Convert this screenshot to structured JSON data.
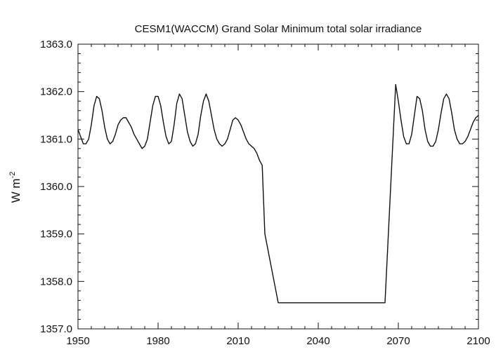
{
  "chart_data": {
    "type": "line",
    "title": "CESM1(WACCM) Grand Solar Minimum total solar irradiance",
    "xlabel": "",
    "ylabel": "W m",
    "ylabel_superscript": "-2",
    "xlim": [
      1950,
      2100
    ],
    "ylim": [
      1357.0,
      1363.0
    ],
    "x_ticks": [
      1950,
      1980,
      2010,
      2040,
      2070,
      2100
    ],
    "x_tick_labels": [
      "1950",
      "1980",
      "2010",
      "2040",
      "2070",
      "2100"
    ],
    "y_ticks": [
      1357.0,
      1358.0,
      1359.0,
      1360.0,
      1361.0,
      1362.0,
      1363.0
    ],
    "y_tick_labels": [
      "1357.0",
      "1358.0",
      "1359.0",
      "1360.0",
      "1361.0",
      "1362.0",
      "1363.0"
    ],
    "grid": false,
    "line_color": "#111111",
    "series": [
      {
        "x": [
          1950,
          1951,
          1952,
          1953,
          1954,
          1955,
          1956,
          1957,
          1958,
          1959,
          1960,
          1961,
          1962,
          1963,
          1964,
          1965,
          1966,
          1967,
          1968,
          1969,
          1970,
          1971,
          1972,
          1973,
          1974,
          1975,
          1976,
          1977,
          1978,
          1979,
          1980,
          1981,
          1982,
          1983,
          1984,
          1985,
          1986,
          1987,
          1988,
          1989,
          1990,
          1991,
          1992,
          1993,
          1994,
          1995,
          1996,
          1997,
          1998,
          1999,
          2000,
          2001,
          2002,
          2003,
          2004,
          2005,
          2006,
          2007,
          2008,
          2009,
          2010,
          2011,
          2012,
          2013,
          2014,
          2015,
          2016,
          2017,
          2018,
          2019,
          2020,
          2025,
          2065,
          2069,
          2070,
          2071,
          2072,
          2073,
          2074,
          2075,
          2076,
          2077,
          2078,
          2079,
          2080,
          2081,
          2082,
          2083,
          2084,
          2085,
          2086,
          2087,
          2088,
          2089,
          2090,
          2091,
          2092,
          2093,
          2094,
          2095,
          2096,
          2097,
          2098,
          2099,
          2100
        ],
        "y": [
          1361.2,
          1361.05,
          1360.9,
          1360.9,
          1361.0,
          1361.3,
          1361.7,
          1361.9,
          1361.85,
          1361.6,
          1361.25,
          1361.0,
          1360.9,
          1360.95,
          1361.1,
          1361.3,
          1361.4,
          1361.45,
          1361.45,
          1361.35,
          1361.25,
          1361.1,
          1361.0,
          1360.9,
          1360.8,
          1360.85,
          1361.0,
          1361.35,
          1361.7,
          1361.9,
          1361.9,
          1361.7,
          1361.35,
          1361.05,
          1360.9,
          1360.95,
          1361.3,
          1361.75,
          1361.95,
          1361.85,
          1361.5,
          1361.15,
          1360.95,
          1360.85,
          1360.9,
          1361.1,
          1361.5,
          1361.8,
          1361.95,
          1361.8,
          1361.5,
          1361.2,
          1361.0,
          1360.9,
          1360.85,
          1360.9,
          1361.0,
          1361.2,
          1361.4,
          1361.45,
          1361.4,
          1361.3,
          1361.15,
          1361.0,
          1360.9,
          1360.85,
          1360.8,
          1360.7,
          1360.55,
          1360.45,
          1359.0,
          1357.55,
          1357.55,
          1362.15,
          1361.8,
          1361.4,
          1361.05,
          1360.9,
          1360.9,
          1361.1,
          1361.5,
          1361.9,
          1361.85,
          1361.6,
          1361.2,
          1360.95,
          1360.85,
          1360.85,
          1360.95,
          1361.2,
          1361.55,
          1361.85,
          1361.95,
          1361.85,
          1361.55,
          1361.2,
          1361.0,
          1360.9,
          1360.9,
          1360.95,
          1361.05,
          1361.2,
          1361.35,
          1361.45,
          1361.5
        ]
      }
    ]
  }
}
